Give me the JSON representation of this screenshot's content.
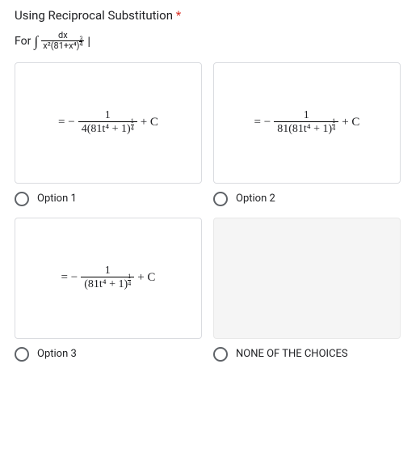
{
  "title": "Using Reciprocal Substitution",
  "required": "*",
  "for_label": "For",
  "integral_sym": "∫",
  "integrand_num": "dx",
  "integrand_den_left": "x²(81+x⁴)",
  "exp_num": "3",
  "exp_den": "4",
  "pipe": "|",
  "eq_minus": "= −",
  "plus_c": "+ C",
  "options": {
    "o1": {
      "num": "1",
      "den_coef": "4(81t⁴ + 1)",
      "label": "Option 1"
    },
    "o2": {
      "num": "1",
      "den_coef": "81(81t⁴ + 1)",
      "label": "Option 2"
    },
    "o3": {
      "num": "1",
      "den_coef": "(81t⁴ + 1)",
      "label": "Option 3"
    },
    "o4": {
      "label": "NONE OF THE CHOICES"
    }
  },
  "sup14_n": "1",
  "sup14_d": "4"
}
